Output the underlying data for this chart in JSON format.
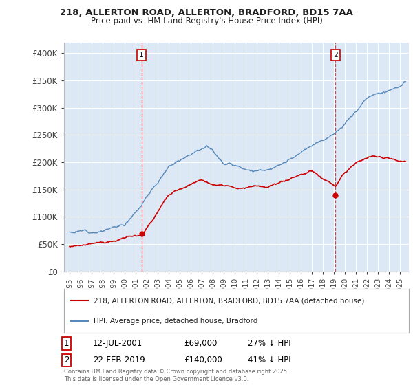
{
  "title_line1": "218, ALLERTON ROAD, ALLERTON, BRADFORD, BD15 7AA",
  "title_line2": "Price paid vs. HM Land Registry's House Price Index (HPI)",
  "background_color": "#ffffff",
  "plot_bg_color": "#dce8f5",
  "grid_color": "#ffffff",
  "red_color": "#cc0000",
  "blue_color": "#5588bb",
  "ylim": [
    0,
    420000
  ],
  "yticks": [
    0,
    50000,
    100000,
    150000,
    200000,
    250000,
    300000,
    350000,
    400000
  ],
  "ytick_labels": [
    "£0",
    "£50K",
    "£100K",
    "£150K",
    "£200K",
    "£250K",
    "£300K",
    "£350K",
    "£400K"
  ],
  "xlim_start": 1994.5,
  "xlim_end": 2025.8,
  "sale1_x": 2001.53,
  "sale1_y": 69000,
  "sale1_label": "1",
  "sale2_x": 2019.14,
  "sale2_y": 140000,
  "sale2_label": "2",
  "legend_line1": "218, ALLERTON ROAD, ALLERTON, BRADFORD, BD15 7AA (detached house)",
  "legend_line2": "HPI: Average price, detached house, Bradford",
  "table_row1_num": "1",
  "table_row1_date": "12-JUL-2001",
  "table_row1_price": "£69,000",
  "table_row1_hpi": "27% ↓ HPI",
  "table_row2_num": "2",
  "table_row2_date": "22-FEB-2019",
  "table_row2_price": "£140,000",
  "table_row2_hpi": "41% ↓ HPI",
  "footnote": "Contains HM Land Registry data © Crown copyright and database right 2025.\nThis data is licensed under the Open Government Licence v3.0."
}
